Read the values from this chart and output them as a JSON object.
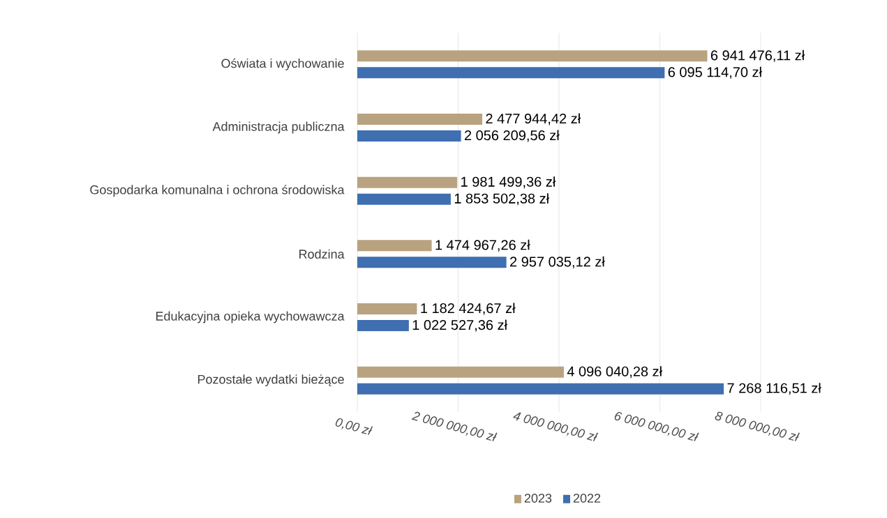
{
  "chart_data": {
    "type": "bar",
    "orientation": "horizontal",
    "categories": [
      "Oświata i wychowanie",
      "Administracja publiczna",
      "Gospodarka komunalna i ochrona środowiska",
      "Rodzina",
      "Edukacyjna opieka wychowawcza",
      "Pozostałe wydatki bieżące"
    ],
    "series": [
      {
        "name": "2023",
        "color": "#b9a27f",
        "values": [
          6941476.11,
          2477944.42,
          1981499.36,
          1474967.26,
          1182424.67,
          4096040.28
        ],
        "value_labels": [
          "6 941 476,11 zł",
          "2 477 944,42 zł",
          "1 981 499,36 zł",
          "1 474 967,26 zł",
          "1 182 424,67 zł",
          "4 096 040,28 zł"
        ]
      },
      {
        "name": "2022",
        "color": "#3f6fb1",
        "values": [
          6095114.7,
          2056209.56,
          1853502.38,
          2957035.12,
          1022527.36,
          7268116.51
        ],
        "value_labels": [
          "6 095 114,70 zł",
          "2 056 209,56 zł",
          "1 853 502,38 zł",
          "2 957 035,12 zł",
          "1 022 527,36 zł",
          "7 268 116,51 zł"
        ]
      }
    ],
    "xlim": [
      0,
      8000000
    ],
    "xticks": [
      {
        "value": 0,
        "label": "0,00 zł"
      },
      {
        "value": 2000000,
        "label": "2 000 000,00 zł"
      },
      {
        "value": 4000000,
        "label": "4 000 000,00 zł"
      },
      {
        "value": 6000000,
        "label": "6 000 000,00 zł"
      },
      {
        "value": 8000000,
        "label": "8 000 000,00 zł"
      }
    ],
    "grid": "x",
    "legend": "bottom"
  }
}
